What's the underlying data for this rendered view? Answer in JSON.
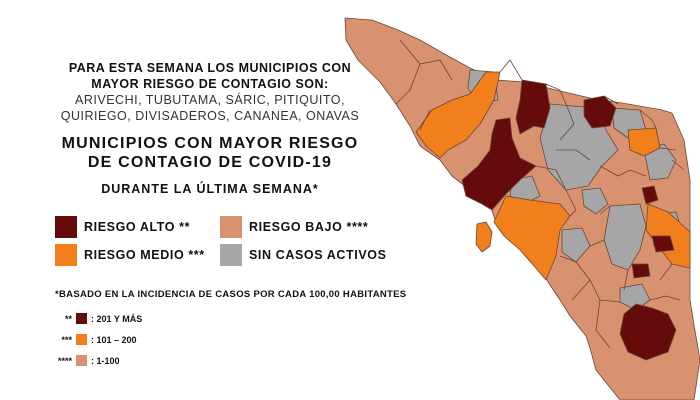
{
  "header": {
    "line1": "PARA ESTA SEMANA LOS MUNICIPIOS CON",
    "line2": "MAYOR RIESGO DE CONTAGIO SON:",
    "towns1": "ARIVECHI, TUBUTAMA, SÁRIC, PITIQUITO,",
    "towns2": "QUIRIEGO, DIVISADEROS, CANANEA, ONAVAS"
  },
  "title": {
    "line1": "MUNICIPIOS CON MAYOR RIESGO",
    "line2": "DE CONTAGIO DE COVID-19"
  },
  "subtitle": "DURANTE LA ÚLTIMA SEMANA*",
  "legend": {
    "alto": "RIESGO ALTO **",
    "medio": "RIESGO MEDIO ***",
    "bajo": "RIESGO BAJO ****",
    "sin": "SIN CASOS ACTIVOS"
  },
  "note": "*BASADO EN LA INCIDENCIA DE CASOS POR CADA 100,00 HABITANTES",
  "scale": [
    {
      "marker": "**",
      "label": ": 201 Y MÁS"
    },
    {
      "marker": "***",
      "label": ": 101 – 200"
    },
    {
      "marker": "****",
      "label": ": 1-100"
    }
  ],
  "colors": {
    "alto": "#650b0b",
    "medio": "#f07f1c",
    "bajo": "#d99270",
    "sin": "#a6a6a6",
    "border": "#6b4636"
  }
}
